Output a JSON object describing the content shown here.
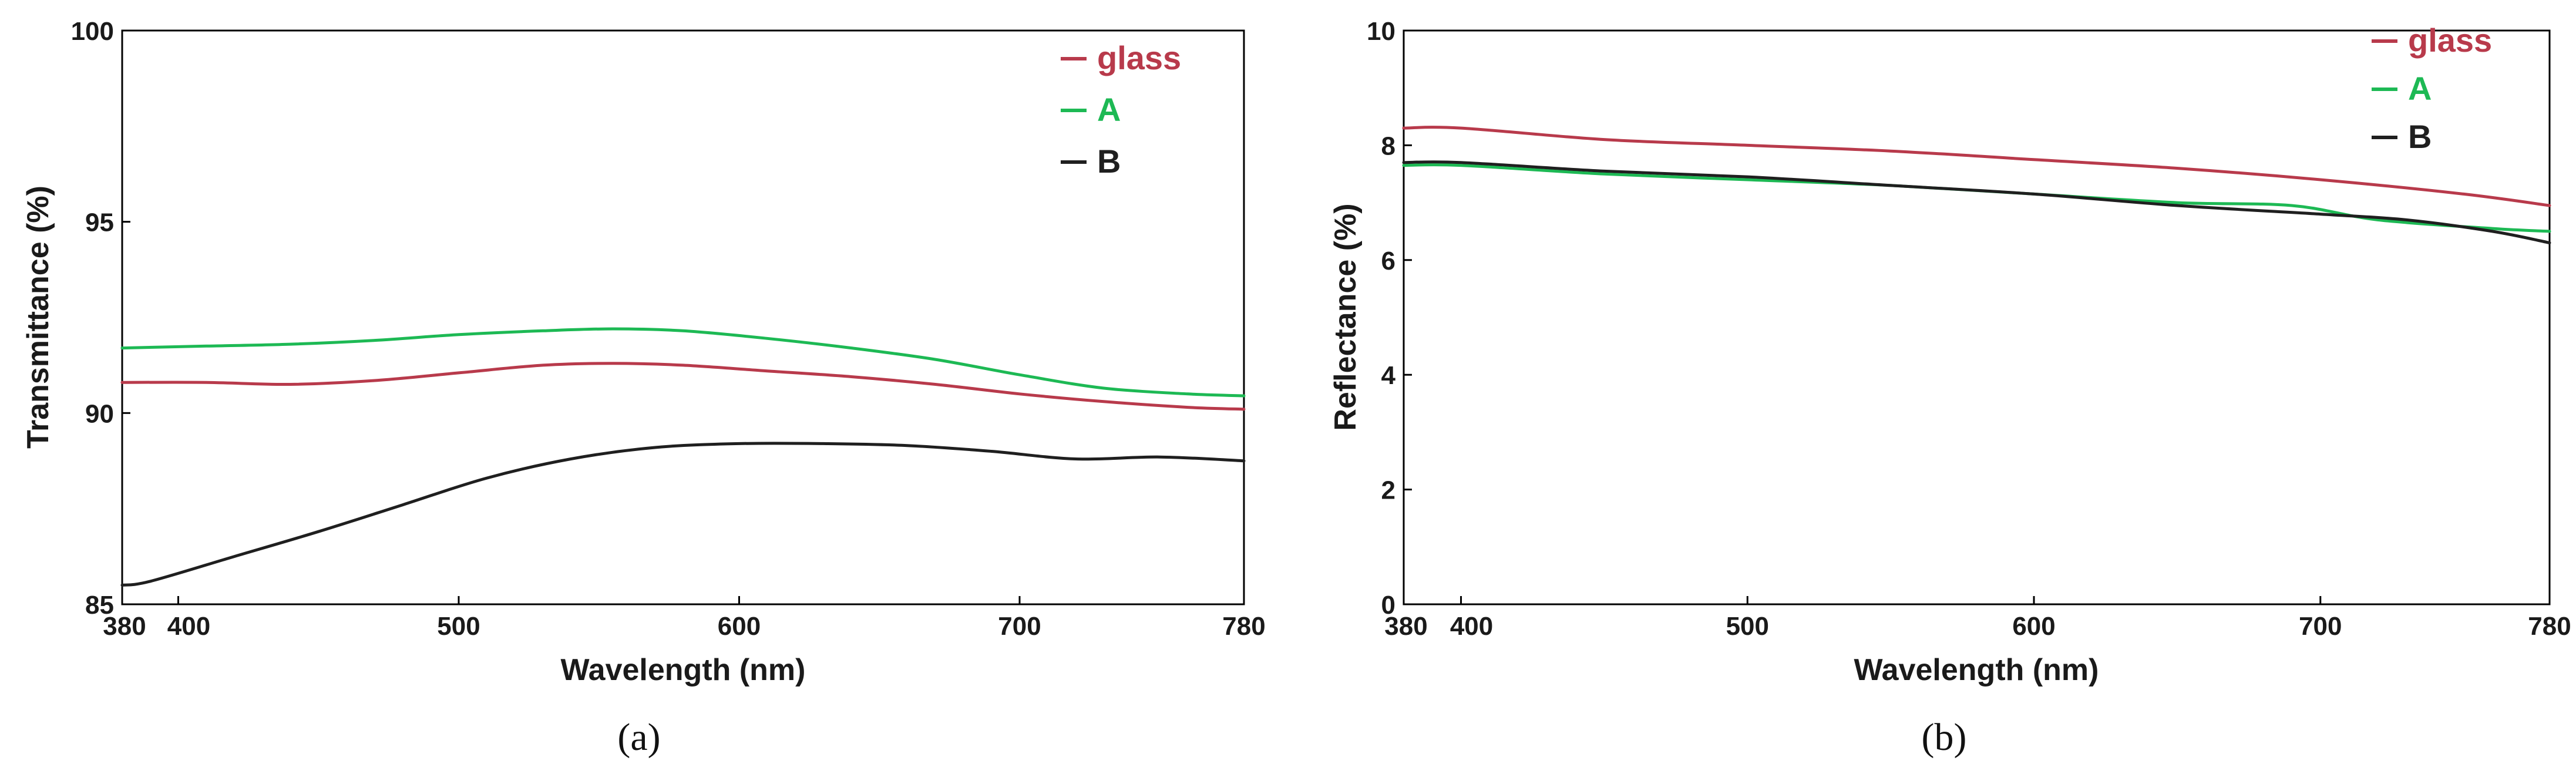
{
  "chart_data": [
    {
      "type": "line",
      "panel_label": "(a)",
      "xlabel": "Wavelength (nm)",
      "ylabel": "Transmittance (%)",
      "xlim": [
        380,
        780
      ],
      "ylim": [
        85,
        100
      ],
      "xticks": [
        380,
        400,
        500,
        600,
        700,
        780
      ],
      "yticks": [
        85,
        90,
        95,
        100
      ],
      "legend_position": "top-right",
      "series": [
        {
          "name": "glass",
          "color": "#b83a4b",
          "x": [
            380,
            410,
            440,
            470,
            500,
            530,
            555,
            580,
            610,
            640,
            670,
            700,
            730,
            760,
            780
          ],
          "y": [
            90.8,
            90.8,
            90.75,
            90.85,
            91.05,
            91.25,
            91.3,
            91.25,
            91.1,
            90.95,
            90.75,
            90.5,
            90.3,
            90.15,
            90.1
          ]
        },
        {
          "name": "A",
          "color": "#1db954",
          "x": [
            380,
            410,
            440,
            470,
            500,
            530,
            555,
            580,
            610,
            640,
            670,
            700,
            730,
            760,
            780
          ],
          "y": [
            91.7,
            91.75,
            91.8,
            91.9,
            92.05,
            92.15,
            92.2,
            92.15,
            91.95,
            91.7,
            91.4,
            91.0,
            90.65,
            90.5,
            90.45
          ]
        },
        {
          "name": "B",
          "color": "#1f1f1f",
          "x": [
            380,
            390,
            420,
            450,
            480,
            510,
            540,
            570,
            600,
            630,
            660,
            690,
            720,
            750,
            780
          ],
          "y": [
            85.5,
            85.6,
            86.25,
            86.9,
            87.6,
            88.3,
            88.8,
            89.1,
            89.2,
            89.2,
            89.15,
            89.0,
            88.8,
            88.85,
            88.75
          ]
        }
      ]
    },
    {
      "type": "line",
      "panel_label": "(b)",
      "xlabel": "Wavelength (nm)",
      "ylabel": "Reflectance (%)",
      "xlim": [
        380,
        780
      ],
      "ylim": [
        0,
        10
      ],
      "xticks": [
        380,
        400,
        500,
        600,
        700,
        780
      ],
      "yticks": [
        0,
        2,
        4,
        6,
        8,
        10
      ],
      "legend_position": "top-right",
      "series": [
        {
          "name": "glass",
          "color": "#b83a4b",
          "x": [
            380,
            400,
            450,
            500,
            550,
            600,
            650,
            700,
            750,
            780
          ],
          "y": [
            8.3,
            8.3,
            8.1,
            8.0,
            7.9,
            7.75,
            7.6,
            7.4,
            7.15,
            6.95
          ]
        },
        {
          "name": "A",
          "color": "#1db954",
          "x": [
            380,
            400,
            450,
            500,
            550,
            600,
            650,
            690,
            720,
            760,
            780
          ],
          "y": [
            7.65,
            7.65,
            7.5,
            7.4,
            7.3,
            7.15,
            7.0,
            6.95,
            6.7,
            6.55,
            6.5
          ]
        },
        {
          "name": "B",
          "color": "#1f1f1f",
          "x": [
            380,
            400,
            450,
            500,
            550,
            600,
            650,
            700,
            730,
            760,
            780
          ],
          "y": [
            7.7,
            7.7,
            7.55,
            7.45,
            7.3,
            7.15,
            6.95,
            6.8,
            6.7,
            6.5,
            6.3
          ]
        }
      ]
    }
  ]
}
